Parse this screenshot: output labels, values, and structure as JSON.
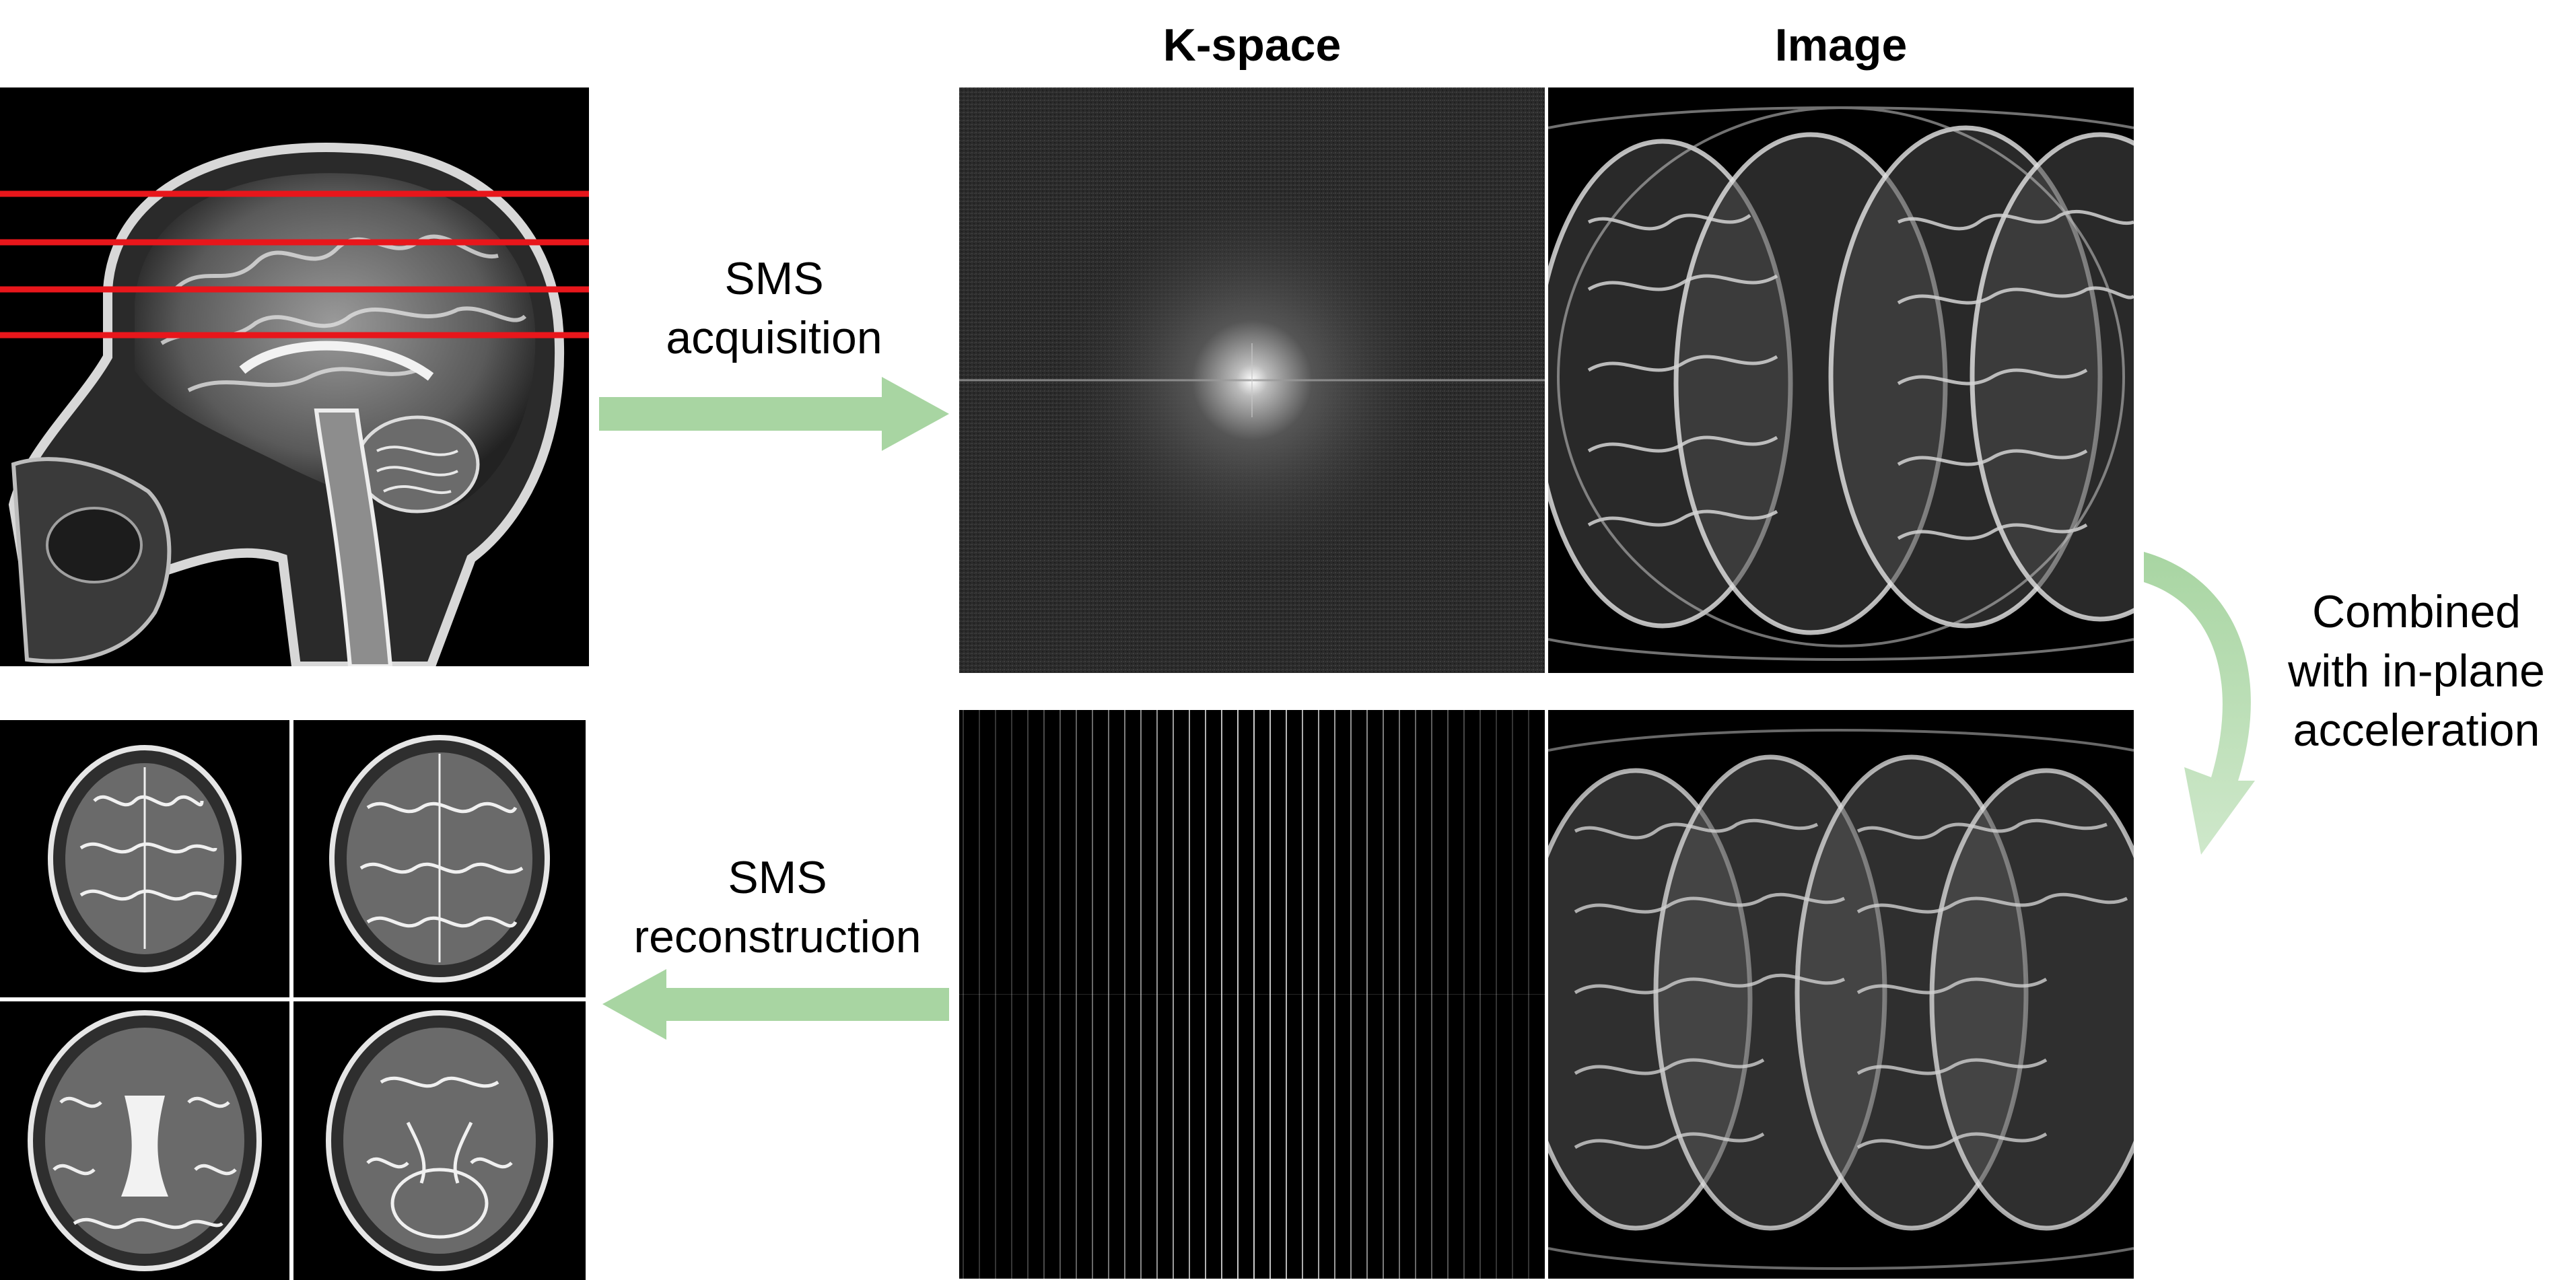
{
  "columns": {
    "kspace_heading": "K-space",
    "image_heading": "Image"
  },
  "steps": {
    "acquisition": {
      "line1": "SMS",
      "line2": "acquisition"
    },
    "reconstruction": {
      "line1": "SMS",
      "line2": "reconstruction"
    },
    "inplane": {
      "line1": "Combined",
      "line2": "with in-plane",
      "line3": "acceleration"
    }
  },
  "colors": {
    "arrow": "#a8d5a2",
    "slice_line": "#e8161b",
    "panel_bg": "#000000"
  }
}
